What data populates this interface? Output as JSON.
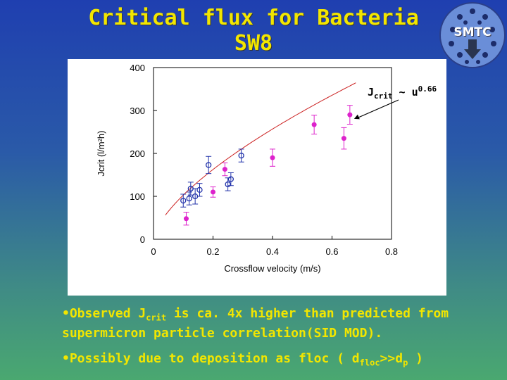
{
  "slide": {
    "title_line1": "Critical flux for Bacteria",
    "title_line2": "SW8",
    "logo_text": "SMTC",
    "bullets": [
      {
        "pre": "•Observed J",
        "sub": "crit",
        "post": " is ca. 4x higher than predicted from supermicron particle correlation(SID MOD)."
      },
      {
        "pre": "•Possibly due to deposition as floc ( d",
        "sub": "floc",
        "mid": ">>d",
        "sub2": "p",
        "post": " )"
      }
    ]
  },
  "chart_data": {
    "type": "scatter",
    "xlabel": "Crossflow velocity (m/s)",
    "ylabel": "Jcrit (l/m²h)",
    "xlim": [
      0,
      0.8
    ],
    "ylim": [
      0,
      400
    ],
    "xticks": [
      "0",
      "0.2",
      "0.4",
      "0.6",
      "0.8"
    ],
    "yticks": [
      "0",
      "100",
      "200",
      "300",
      "400"
    ],
    "annotation": {
      "base": "J",
      "sub": "crit",
      "rest": " ~ u",
      "sup": "0.66"
    },
    "fit": {
      "coef": 470,
      "exponent": 0.66,
      "x_range": [
        0.04,
        0.68
      ],
      "color": "#cc2222"
    },
    "series": [
      {
        "marker": "filled-circle",
        "color": "#dd22cc",
        "points": [
          {
            "x": 0.11,
            "y": 48,
            "err": 15
          },
          {
            "x": 0.2,
            "y": 110,
            "err": 12
          },
          {
            "x": 0.24,
            "y": 163,
            "err": 15
          },
          {
            "x": 0.4,
            "y": 190,
            "err": 20
          },
          {
            "x": 0.54,
            "y": 267,
            "err": 22
          },
          {
            "x": 0.64,
            "y": 235,
            "err": 25
          },
          {
            "x": 0.66,
            "y": 290,
            "err": 22
          }
        ]
      },
      {
        "marker": "open-circle",
        "color": "#2233aa",
        "points": [
          {
            "x": 0.1,
            "y": 90,
            "err": 15
          },
          {
            "x": 0.12,
            "y": 95,
            "err": 15
          },
          {
            "x": 0.125,
            "y": 118,
            "err": 15
          },
          {
            "x": 0.14,
            "y": 100,
            "err": 18
          },
          {
            "x": 0.155,
            "y": 115,
            "err": 15
          },
          {
            "x": 0.185,
            "y": 173,
            "err": 20
          },
          {
            "x": 0.25,
            "y": 128,
            "err": 15
          },
          {
            "x": 0.26,
            "y": 140,
            "err": 15
          },
          {
            "x": 0.295,
            "y": 195,
            "err": 15
          }
        ]
      }
    ]
  }
}
